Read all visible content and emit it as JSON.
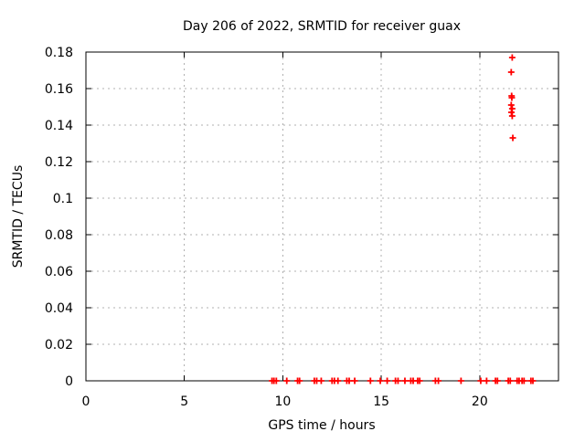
{
  "colors": {
    "background": "#ffffff",
    "axis": "#000000",
    "grid": "#b0b0b0",
    "marker": "#ff0000"
  },
  "chart_data": {
    "type": "scatter",
    "title": "Day 206 of 2022, SRMTID for receiver guax",
    "xlabel": "GPS time / hours",
    "ylabel": "SRMTID / TECUs",
    "xlim": [
      0,
      24
    ],
    "ylim": [
      0,
      0.18
    ],
    "grid": true,
    "legend_position": "none",
    "x_ticks": {
      "values": [
        0,
        5,
        10,
        15,
        20
      ],
      "labels": [
        "0",
        "5",
        "10",
        "15",
        "20"
      ]
    },
    "y_ticks": {
      "values": [
        0,
        0.02,
        0.04,
        0.06,
        0.08,
        0.1,
        0.12,
        0.14,
        0.16,
        0.18
      ],
      "labels": [
        "0",
        "0.02",
        "0.04",
        "0.06",
        "0.08",
        "0.1",
        "0.12",
        "0.14",
        "0.16",
        "0.18"
      ]
    },
    "series": [
      {
        "name": "SRMTID",
        "marker": "plus",
        "color": "#ff0000",
        "points": [
          [
            9.45,
            0
          ],
          [
            9.55,
            0
          ],
          [
            9.67,
            0
          ],
          [
            10.2,
            0
          ],
          [
            10.75,
            0
          ],
          [
            10.85,
            0
          ],
          [
            11.6,
            0
          ],
          [
            11.72,
            0
          ],
          [
            11.95,
            0
          ],
          [
            12.5,
            0
          ],
          [
            12.62,
            0
          ],
          [
            12.8,
            0
          ],
          [
            13.25,
            0
          ],
          [
            13.37,
            0
          ],
          [
            13.65,
            0
          ],
          [
            14.45,
            0
          ],
          [
            14.95,
            0
          ],
          [
            15.3,
            0
          ],
          [
            15.72,
            0
          ],
          [
            15.85,
            0
          ],
          [
            16.2,
            0
          ],
          [
            16.5,
            0
          ],
          [
            16.62,
            0
          ],
          [
            16.85,
            0
          ],
          [
            16.95,
            0
          ],
          [
            17.75,
            0
          ],
          [
            17.9,
            0
          ],
          [
            19.05,
            0
          ],
          [
            20.05,
            0
          ],
          [
            20.35,
            0
          ],
          [
            20.8,
            0
          ],
          [
            20.9,
            0
          ],
          [
            21.45,
            0
          ],
          [
            21.55,
            0
          ],
          [
            21.9,
            0
          ],
          [
            22.0,
            0
          ],
          [
            22.15,
            0
          ],
          [
            22.25,
            0
          ],
          [
            22.6,
            0
          ],
          [
            22.7,
            0
          ],
          [
            21.65,
            0.177
          ],
          [
            21.6,
            0.169
          ],
          [
            21.62,
            0.156
          ],
          [
            21.63,
            0.155
          ],
          [
            21.6,
            0.151
          ],
          [
            21.65,
            0.149
          ],
          [
            21.61,
            0.147
          ],
          [
            21.65,
            0.145
          ],
          [
            21.68,
            0.133
          ]
        ]
      }
    ]
  }
}
